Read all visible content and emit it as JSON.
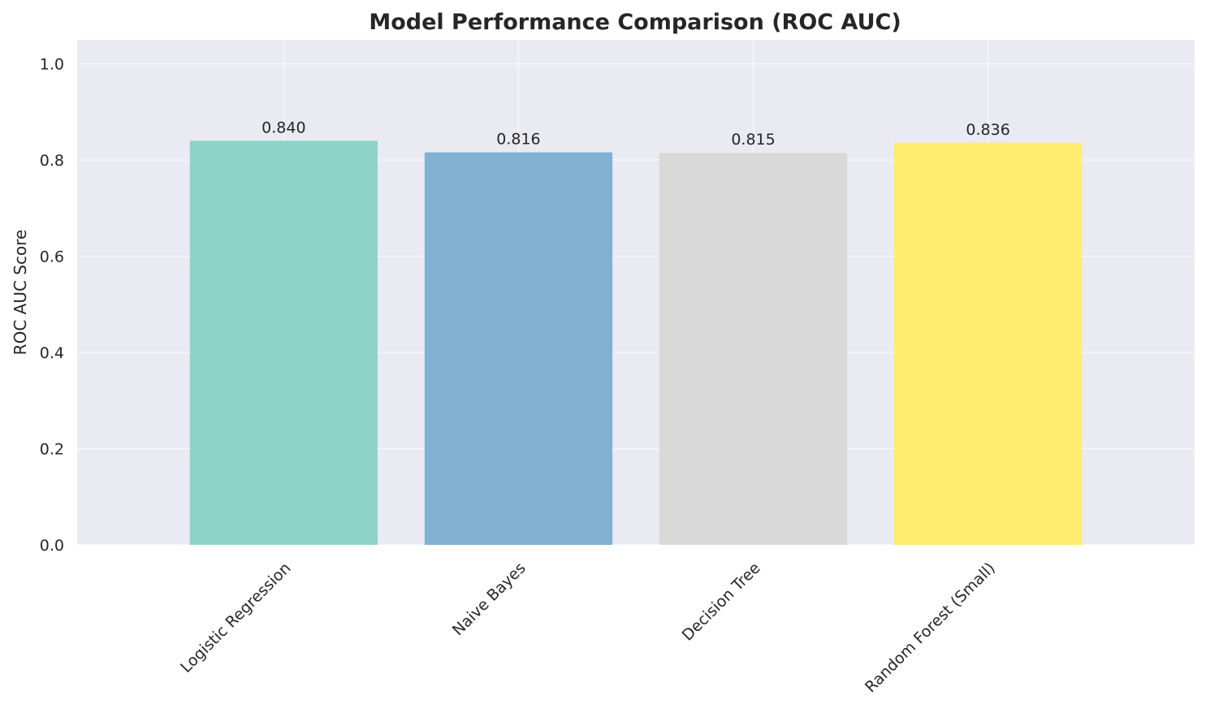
{
  "chart_data": {
    "type": "bar",
    "title": "Model Performance Comparison (ROC AUC)",
    "xlabel": "",
    "ylabel": "ROC AUC Score",
    "categories": [
      "Logistic Regression",
      "Naive Bayes",
      "Decision Tree",
      "Random Forest (Small)"
    ],
    "values": [
      0.84,
      0.816,
      0.815,
      0.836
    ],
    "value_labels": [
      "0.840",
      "0.816",
      "0.815",
      "0.836"
    ],
    "colors": [
      "#8dd3c7",
      "#80b1d3",
      "#d9d9d9",
      "#ffed6f"
    ],
    "ylim": [
      0,
      1.05
    ],
    "yticks": [
      0.0,
      0.2,
      0.4,
      0.6,
      0.8,
      1.0
    ],
    "ytick_labels": [
      "0.0",
      "0.2",
      "0.4",
      "0.6",
      "0.8",
      "1.0"
    ],
    "grid": true,
    "legend": "none",
    "plot_background": "#eaeaf2",
    "grid_color": "#ffffff"
  }
}
